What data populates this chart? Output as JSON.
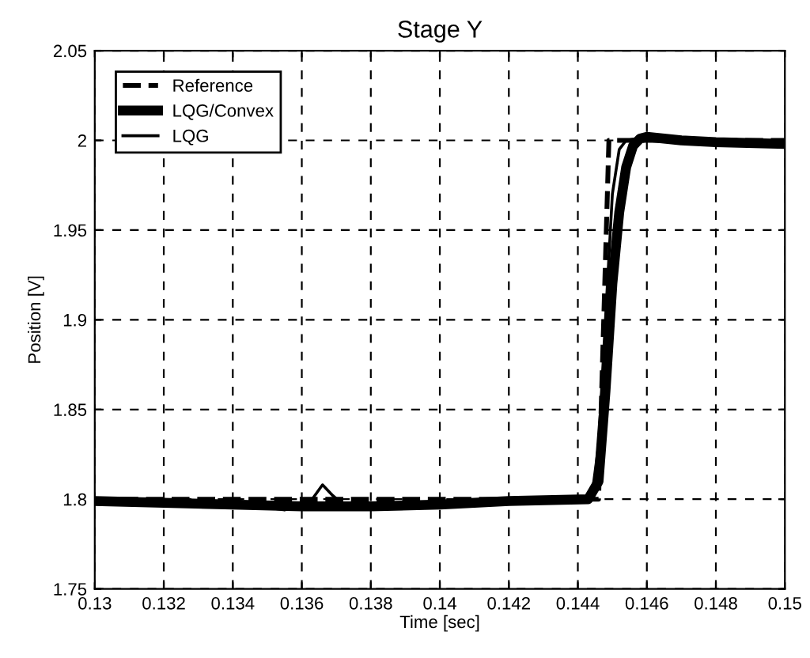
{
  "chart_data": {
    "type": "line",
    "title": "Stage Y",
    "xlabel": "Time [sec]",
    "ylabel": "Position [V]",
    "xlim": [
      0.13,
      0.15
    ],
    "ylim": [
      1.75,
      2.05
    ],
    "xticks": [
      0.13,
      0.132,
      0.134,
      0.136,
      0.138,
      0.14,
      0.142,
      0.144,
      0.146,
      0.148,
      0.15
    ],
    "yticks": [
      1.75,
      1.8,
      1.85,
      1.9,
      1.95,
      2,
      2.05
    ],
    "grid": true,
    "legend": "top left",
    "marker": "none",
    "series": [
      {
        "name": "Reference",
        "color": "#000000",
        "line_style": "dashed",
        "x": [
          0.13,
          0.1446,
          0.1449,
          0.15
        ],
        "values": [
          1.8,
          1.8,
          2.0,
          2.0
        ]
      },
      {
        "name": "LQG/Convex",
        "color": "#000000",
        "line_style": "solid",
        "x": [
          0.13,
          0.132,
          0.134,
          0.136,
          0.138,
          0.14,
          0.142,
          0.1443,
          0.1446,
          0.1448,
          0.145,
          0.1452,
          0.1454,
          0.1456,
          0.1458,
          0.146,
          0.147,
          0.148,
          0.15
        ],
        "values": [
          1.799,
          1.798,
          1.797,
          1.796,
          1.796,
          1.797,
          1.799,
          1.8,
          1.81,
          1.86,
          1.92,
          1.96,
          1.985,
          1.997,
          2.001,
          2.002,
          2.0,
          1.999,
          1.998
        ]
      },
      {
        "name": "LQG",
        "color": "#000000",
        "line_style": "solid",
        "x": [
          0.13,
          0.134,
          0.1355,
          0.1363,
          0.1366,
          0.1369,
          0.1372,
          0.138,
          0.14,
          0.142,
          0.1444,
          0.1446,
          0.1448,
          0.145,
          0.1452,
          0.1454,
          0.1457,
          0.146,
          0.148,
          0.15
        ],
        "values": [
          1.8,
          1.798,
          1.794,
          1.8,
          1.808,
          1.802,
          1.797,
          1.796,
          1.798,
          1.8,
          1.801,
          1.83,
          1.9,
          1.97,
          1.995,
          2.0,
          2.001,
          2.0,
          1.999,
          1.998
        ]
      }
    ]
  }
}
